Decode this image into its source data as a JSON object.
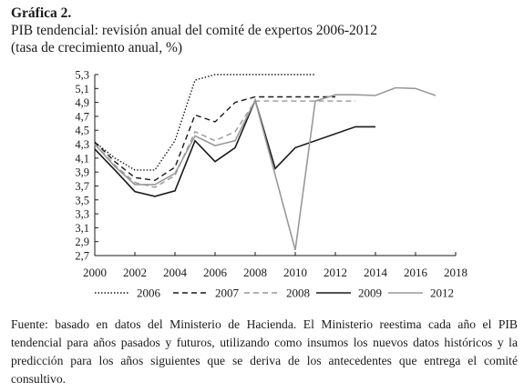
{
  "figure_label": "Gráfica 2.",
  "figure_title": "PIB tendencial: revisión anual del comité de expertos 2006-2012",
  "figure_subtitle": "(tasa de crecimiento anual, %)",
  "source_note": "Fuente: basado en datos del Ministerio de Hacienda. El Ministerio reestima cada año el PIB tendencial para años pasados y futuros, utilizando como insumos los nuevos datos históricos y la predicción para los años siguientes que se deriva de los antecedentes que entrega el comité consultivo.",
  "chart_data": {
    "type": "line",
    "title": "PIB tendencial: revisión anual del comité de expertos 2006-2012",
    "xlabel": "",
    "ylabel": "",
    "xlim": [
      2000,
      2018
    ],
    "ylim": [
      2.7,
      5.3
    ],
    "x_ticks": [
      "2000",
      "2002",
      "2004",
      "2006",
      "2008",
      "2010",
      "2012",
      "2014",
      "2016",
      "2018"
    ],
    "y_ticks": [
      "5,3",
      "5,1",
      "4,9",
      "4,7",
      "4,5",
      "4,3",
      "4,1",
      "3,9",
      "3,7",
      "3,5",
      "3,3",
      "3,1",
      "2,9",
      "2,7"
    ],
    "grid": false,
    "legend_position": "bottom",
    "series": [
      {
        "name": "2006",
        "color": "#1a1a1a",
        "style": "dotted",
        "x": [
          2000,
          2001,
          2002,
          2003,
          2004,
          2005,
          2006,
          2007,
          2008,
          2009,
          2010,
          2011
        ],
        "y": [
          4.33,
          4.1,
          3.93,
          3.93,
          4.35,
          5.22,
          5.3,
          5.3,
          5.3,
          5.3,
          5.3,
          5.3
        ]
      },
      {
        "name": "2007",
        "color": "#1a1a1a",
        "style": "dashed",
        "x": [
          2000,
          2001,
          2002,
          2003,
          2004,
          2005,
          2006,
          2007,
          2008,
          2009,
          2010,
          2011,
          2012
        ],
        "y": [
          4.33,
          4.05,
          3.82,
          3.78,
          3.97,
          4.72,
          4.62,
          4.9,
          4.98,
          4.98,
          4.98,
          4.98,
          4.98
        ]
      },
      {
        "name": "2008",
        "color": "#999999",
        "style": "dashed",
        "x": [
          2000,
          2001,
          2002,
          2003,
          2004,
          2005,
          2006,
          2007,
          2008,
          2009,
          2010,
          2011,
          2012,
          2013
        ],
        "y": [
          4.3,
          4.0,
          3.75,
          3.68,
          3.85,
          4.48,
          4.35,
          4.48,
          4.92,
          4.92,
          4.92,
          4.92,
          4.92,
          4.92
        ]
      },
      {
        "name": "2009",
        "color": "#1a1a1a",
        "style": "solid",
        "x": [
          2000,
          2001,
          2002,
          2003,
          2004,
          2005,
          2006,
          2007,
          2008,
          2009,
          2010,
          2013,
          2014
        ],
        "y": [
          4.23,
          3.93,
          3.62,
          3.55,
          3.63,
          4.35,
          4.05,
          4.25,
          4.93,
          3.95,
          4.25,
          4.55,
          4.55
        ]
      },
      {
        "name": "2012",
        "color": "#999999",
        "style": "solid",
        "x": [
          2000,
          2001,
          2002,
          2003,
          2004,
          2005,
          2006,
          2007,
          2008,
          2010,
          2011,
          2012,
          2013,
          2014,
          2015,
          2016,
          2017
        ],
        "y": [
          4.3,
          3.98,
          3.72,
          3.72,
          3.88,
          4.42,
          4.28,
          4.35,
          4.93,
          2.78,
          4.92,
          5.01,
          5.01,
          5.0,
          5.11,
          5.1,
          5.0
        ]
      }
    ]
  }
}
